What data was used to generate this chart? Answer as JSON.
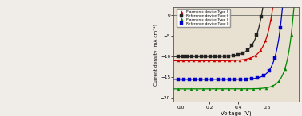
{
  "title": "",
  "xlabel": "Voltage (V)",
  "ylabel": "Current density (mA cm⁻²)",
  "xlim": [
    -0.05,
    0.82
  ],
  "ylim": [
    -21,
    2
  ],
  "legend": [
    "Plasmonic device Type I",
    "Reference device Type I",
    "Plasmonic device Type II",
    "Reference device Type II"
  ],
  "colors": [
    "#cc0000",
    "#222222",
    "#008800",
    "#0000cc"
  ],
  "markers": [
    "^",
    "s",
    "^",
    "s"
  ],
  "bg_color": "#e8e0d0",
  "xticks": [
    0.0,
    0.2,
    0.4,
    0.6
  ],
  "yticks": [
    -20,
    -15,
    -10,
    -5,
    0
  ],
  "curves": [
    {
      "Jsc": 11.0,
      "Voc": 0.63,
      "n": 2.0,
      "FF": 0.6
    },
    {
      "Jsc": 10.0,
      "Voc": 0.56,
      "n": 2.0,
      "FF": 0.58
    },
    {
      "Jsc": 17.8,
      "Voc": 0.78,
      "n": 1.7,
      "FF": 0.65
    },
    {
      "Jsc": 15.5,
      "Voc": 0.7,
      "n": 1.7,
      "FF": 0.63
    }
  ]
}
